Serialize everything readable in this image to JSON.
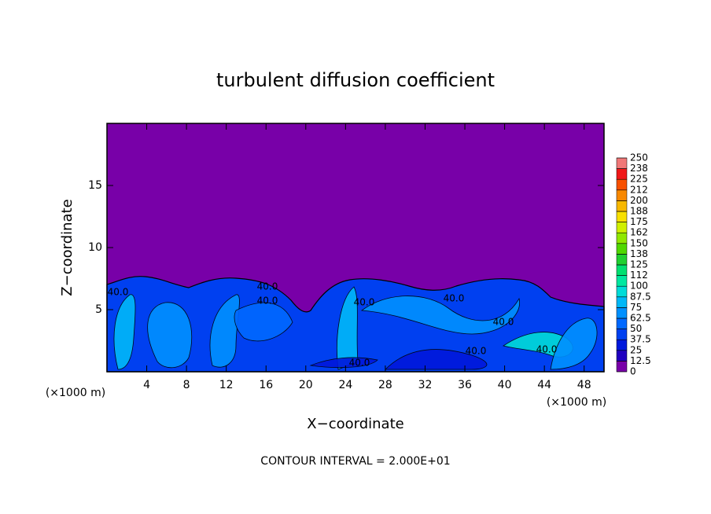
{
  "chart_data": {
    "type": "contour",
    "title": "turbulent diffusion coefficient",
    "x_label": "X−coordinate",
    "y_label": "Z−coordinate",
    "x_unit": "(×1000 m)",
    "y_unit": "(×1000 m)",
    "footer": "CONTOUR INTERVAL = 2.000E+01",
    "contour_label": "40.0",
    "xlim": [
      0,
      50
    ],
    "xticks": [
      4,
      8,
      12,
      16,
      20,
      24,
      28,
      32,
      36,
      40,
      44,
      48
    ],
    "ylim": [
      0,
      20
    ],
    "yticks": [
      5,
      10,
      15
    ],
    "levels": [
      0,
      12.5,
      25,
      37.5,
      50,
      62.5,
      75,
      87.5,
      100,
      {
        "value": 112.5,
        "label": "112"
      },
      125,
      {
        "value": 137.5,
        "label": "138"
      },
      150,
      {
        "value": 162.5,
        "label": "162"
      },
      175,
      {
        "value": 187.5,
        "label": "188"
      },
      200,
      {
        "value": 212.5,
        "label": "212"
      },
      225,
      {
        "value": 237.5,
        "label": "238"
      },
      250
    ],
    "colors": [
      "#7800a8",
      "#2000c0",
      "#0018dc",
      "#0040f0",
      "#0068ff",
      "#0090ff",
      "#00b8f8",
      "#00dcd8",
      "#00e8a0",
      "#00e070",
      "#20d030",
      "#50d800",
      "#90e800",
      "#d0f000",
      "#f8e000",
      "#f8b800",
      "#f88800",
      "#f85000",
      "#f01818",
      "#f07878"
    ]
  }
}
